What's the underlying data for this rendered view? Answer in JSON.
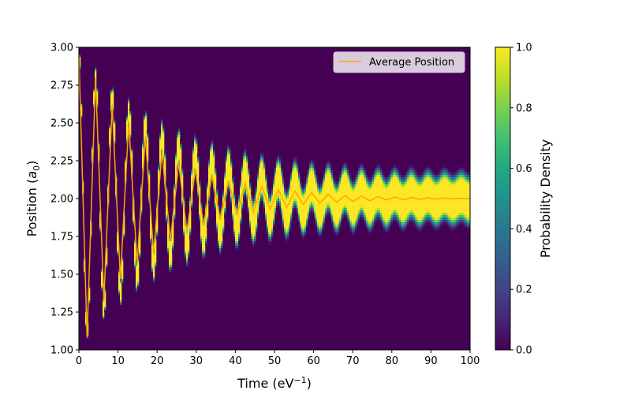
{
  "chart_data": {
    "type": "heatmap",
    "title": "",
    "xlabel": "Time (eV",
    "xlabel_sup": "−1",
    "xlabel_close": ")",
    "ylabel": "Position (",
    "ylabel_var": "a",
    "ylabel_sub": "0",
    "ylabel_close": ")",
    "xlim": [
      0,
      100
    ],
    "ylim": [
      1.0,
      3.0
    ],
    "x_ticks": [
      0,
      10,
      20,
      30,
      40,
      50,
      60,
      70,
      80,
      90,
      100
    ],
    "x_tick_labels": [
      "0",
      "10",
      "20",
      "30",
      "40",
      "50",
      "60",
      "70",
      "80",
      "90",
      "100"
    ],
    "y_ticks": [
      1.0,
      1.25,
      1.5,
      1.75,
      2.0,
      2.25,
      2.5,
      2.75,
      3.0
    ],
    "y_tick_labels": [
      "1.00",
      "1.25",
      "1.50",
      "1.75",
      "2.00",
      "2.25",
      "2.50",
      "2.75",
      "3.00"
    ],
    "colorbar": {
      "label": "Probability Density",
      "colormap": "viridis",
      "range": [
        0,
        1
      ],
      "ticks": [
        0,
        0.2,
        0.4,
        0.6,
        0.8,
        1.0
      ],
      "tick_labels": [
        "0.0",
        "0.2",
        "0.4",
        "0.6",
        "0.8",
        "1.0"
      ]
    },
    "density_model": {
      "center": 2.0,
      "initial_amplitude": 0.95,
      "decay_time": 25,
      "period": 4.25,
      "packet_sigma_start": 0.035,
      "packet_sigma_end": 0.14
    },
    "series": [
      {
        "name": "Average Position",
        "color": "#ffa500",
        "x": [
          0,
          2.1,
          4.25,
          6.4,
          8.5,
          10.6,
          12.75,
          14.9,
          17.0,
          19.1,
          21.25,
          23.4,
          25.5,
          27.6,
          29.75,
          31.9,
          34.0,
          36.1,
          38.25,
          40.4,
          42.5,
          44.6,
          46.75,
          48.9,
          51.0,
          53.1,
          55.25,
          57.4,
          59.5,
          61.6,
          63.75,
          65.9,
          68.0,
          70.1,
          72.25,
          74.4,
          76.5,
          78.6,
          80.75,
          82.9,
          85.0,
          87.1,
          89.25,
          91.4,
          93.5,
          95.6,
          97.75,
          100
        ],
        "y": [
          2.95,
          1.08,
          2.8,
          1.33,
          2.62,
          1.47,
          2.5,
          1.57,
          2.41,
          1.64,
          2.31,
          1.72,
          2.24,
          1.78,
          2.19,
          1.82,
          2.16,
          1.86,
          2.12,
          1.89,
          2.1,
          1.91,
          2.08,
          1.93,
          2.06,
          1.94,
          2.05,
          1.96,
          2.04,
          1.97,
          2.03,
          1.975,
          2.02,
          1.98,
          2.018,
          1.985,
          2.014,
          1.99,
          2.01,
          1.992,
          2.008,
          1.995,
          2.005,
          1.996,
          2.004,
          1.998,
          2.002,
          2.0
        ]
      }
    ],
    "legend": {
      "position": "top-right",
      "entries": [
        "Average Position"
      ]
    }
  }
}
